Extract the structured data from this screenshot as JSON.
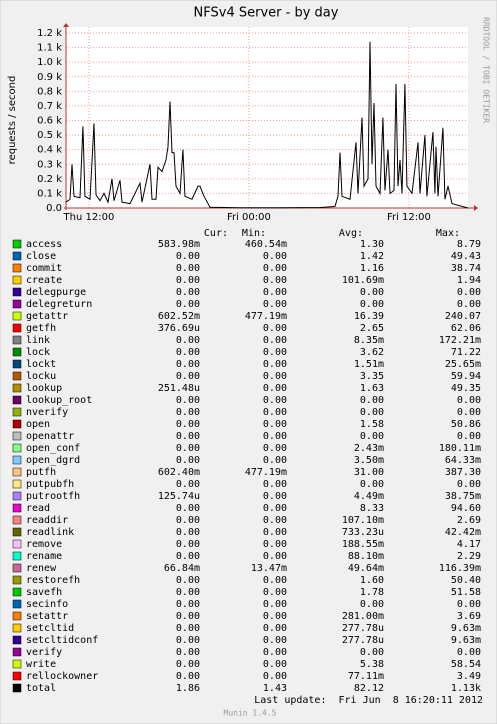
{
  "chart_data": {
    "type": "line",
    "title": "NFSv4 Server - by day",
    "y_label": "requests / second",
    "watermark": "RRDTOOL / TOBI OETIKER",
    "xlim": [
      10.28,
      40.43
    ],
    "ylim": [
      0,
      1200
    ],
    "xticks": [
      {
        "value": 12,
        "label": "Thu 12:00"
      },
      {
        "value": 24,
        "label": "Fri 00:00"
      },
      {
        "value": 36,
        "label": "Fri 12:00"
      }
    ],
    "yticks": [
      {
        "value": 0,
        "label": "0.0"
      },
      {
        "value": 100,
        "label": "0.1 k"
      },
      {
        "value": 200,
        "label": "0.2 k"
      },
      {
        "value": 300,
        "label": "0.3 k"
      },
      {
        "value": 400,
        "label": "0.4 k"
      },
      {
        "value": 500,
        "label": "0.5 k"
      },
      {
        "value": 600,
        "label": "0.6 k"
      },
      {
        "value": 700,
        "label": "0.7 k"
      },
      {
        "value": 800,
        "label": "0.8 k"
      },
      {
        "value": 900,
        "label": "0.9 k"
      },
      {
        "value": 1000,
        "label": "1.0 k"
      },
      {
        "value": 1100,
        "label": "1.1 k"
      },
      {
        "value": 1200,
        "label": "1.2 k"
      }
    ],
    "grid": true,
    "color": "#000000",
    "x": [
      10.28,
      10.58,
      10.73,
      10.88,
      11.33,
      11.55,
      11.7,
      12.08,
      12.38,
      12.53,
      12.83,
      13.13,
      13.43,
      13.73,
      13.88,
      14.33,
      14.48,
      15.08,
      15.83,
      15.98,
      16.58,
      16.73,
      17.03,
      17.18,
      17.48,
      17.78,
      17.93,
      18.08,
      18.23,
      18.38,
      18.53,
      18.83,
      19.05,
      19.2,
      19.73,
      20.18,
      20.33,
      20.63,
      21.08,
      23.33,
      26.33,
      29.33,
      30.45,
      30.68,
      30.83,
      30.98,
      31.58,
      32.03,
      32.18,
      32.48,
      32.63,
      32.93,
      33.08,
      33.23,
      33.38,
      33.53,
      33.83,
      34.05,
      34.2,
      34.43,
      34.58,
      34.88,
      35.03,
      35.18,
      35.33,
      35.48,
      35.7,
      35.85,
      36.23,
      36.68,
      36.83,
      37.2,
      37.35,
      37.8,
      37.95,
      38.03,
      38.18,
      38.55,
      38.7,
      38.93,
      39.23,
      40.43
    ],
    "values": [
      40,
      60,
      300,
      80,
      70,
      560,
      80,
      60,
      580,
      90,
      50,
      100,
      40,
      200,
      50,
      190,
      40,
      30,
      170,
      40,
      300,
      60,
      60,
      280,
      250,
      330,
      420,
      730,
      380,
      380,
      150,
      100,
      400,
      80,
      60,
      150,
      150,
      80,
      5,
      2,
      2,
      3,
      10,
      80,
      380,
      80,
      60,
      450,
      100,
      620,
      150,
      200,
      1140,
      300,
      720,
      150,
      100,
      620,
      120,
      400,
      100,
      120,
      850,
      150,
      330,
      100,
      850,
      150,
      100,
      450,
      100,
      500,
      80,
      520,
      100,
      420,
      80,
      550,
      60,
      150,
      30,
      0
    ]
  },
  "legend": {
    "columns": [
      "Cur:",
      "Min:",
      "Avg:",
      "Max:"
    ],
    "rows": [
      {
        "name": "access",
        "color": "#00cc00",
        "cells": [
          "583.98m",
          "460.54m",
          "1.30",
          "8.79"
        ]
      },
      {
        "name": "close",
        "color": "#0066b3",
        "cells": [
          "0.00",
          "0.00",
          "1.42",
          "49.43"
        ]
      },
      {
        "name": "commit",
        "color": "#ff8000",
        "cells": [
          "0.00",
          "0.00",
          "1.16",
          "38.74"
        ]
      },
      {
        "name": "create",
        "color": "#ffcc00",
        "cells": [
          "0.00",
          "0.00",
          "101.69m",
          "1.94"
        ]
      },
      {
        "name": "delegpurge",
        "color": "#330099",
        "cells": [
          "0.00",
          "0.00",
          "0.00",
          "0.00"
        ]
      },
      {
        "name": "delegreturn",
        "color": "#990099",
        "cells": [
          "0.00",
          "0.00",
          "0.00",
          "0.00"
        ]
      },
      {
        "name": "getattr",
        "color": "#ccff00",
        "cells": [
          "602.52m",
          "477.19m",
          "16.39",
          "240.07"
        ]
      },
      {
        "name": "getfh",
        "color": "#ff0000",
        "cells": [
          "376.69u",
          "0.00",
          "2.65",
          "62.06"
        ]
      },
      {
        "name": "link",
        "color": "#808080",
        "cells": [
          "0.00",
          "0.00",
          "8.35m",
          "172.21m"
        ]
      },
      {
        "name": "lock",
        "color": "#008f00",
        "cells": [
          "0.00",
          "0.00",
          "3.62",
          "71.22"
        ]
      },
      {
        "name": "lockt",
        "color": "#00487d",
        "cells": [
          "0.00",
          "0.00",
          "1.51m",
          "25.65m"
        ]
      },
      {
        "name": "locku",
        "color": "#b35a00",
        "cells": [
          "0.00",
          "0.00",
          "3.35",
          "59.94"
        ]
      },
      {
        "name": "lookup",
        "color": "#b38f00",
        "cells": [
          "251.48u",
          "0.00",
          "1.63",
          "49.35"
        ]
      },
      {
        "name": "lookup_root",
        "color": "#6b006b",
        "cells": [
          "0.00",
          "0.00",
          "0.00",
          "0.00"
        ]
      },
      {
        "name": "nverify",
        "color": "#8fb300",
        "cells": [
          "0.00",
          "0.00",
          "0.00",
          "0.00"
        ]
      },
      {
        "name": "open",
        "color": "#b30000",
        "cells": [
          "0.00",
          "0.00",
          "1.58",
          "50.86"
        ]
      },
      {
        "name": "openattr",
        "color": "#bebebe",
        "cells": [
          "0.00",
          "0.00",
          "0.00",
          "0.00"
        ]
      },
      {
        "name": "open_conf",
        "color": "#80ff80",
        "cells": [
          "0.00",
          "0.00",
          "2.43m",
          "180.11m"
        ]
      },
      {
        "name": "open_dgrd",
        "color": "#80c9ff",
        "cells": [
          "0.00",
          "0.00",
          "3.50m",
          "64.33m"
        ]
      },
      {
        "name": "putfh",
        "color": "#ffc080",
        "cells": [
          "602.40m",
          "477.19m",
          "31.00",
          "387.30"
        ]
      },
      {
        "name": "putpubfh",
        "color": "#ffe680",
        "cells": [
          "0.00",
          "0.00",
          "0.00",
          "0.00"
        ]
      },
      {
        "name": "putrootfh",
        "color": "#aa80ff",
        "cells": [
          "125.74u",
          "0.00",
          "4.49m",
          "38.75m"
        ]
      },
      {
        "name": "read",
        "color": "#ee00cc",
        "cells": [
          "0.00",
          "0.00",
          "8.33",
          "94.60"
        ]
      },
      {
        "name": "readdir",
        "color": "#ff8080",
        "cells": [
          "0.00",
          "0.00",
          "107.10m",
          "2.69"
        ]
      },
      {
        "name": "readlink",
        "color": "#666600",
        "cells": [
          "0.00",
          "0.00",
          "733.23u",
          "42.42m"
        ]
      },
      {
        "name": "remove",
        "color": "#ffbfff",
        "cells": [
          "0.00",
          "0.00",
          "188.55m",
          "4.17"
        ]
      },
      {
        "name": "rename",
        "color": "#00ffcc",
        "cells": [
          "0.00",
          "0.00",
          "88.10m",
          "2.29"
        ]
      },
      {
        "name": "renew",
        "color": "#cc6699",
        "cells": [
          "66.84m",
          "13.47m",
          "49.64m",
          "116.39m"
        ]
      },
      {
        "name": "restorefh",
        "color": "#999900",
        "cells": [
          "0.00",
          "0.00",
          "1.60",
          "50.40"
        ]
      },
      {
        "name": "savefh",
        "color": "#00cc00",
        "cells": [
          "0.00",
          "0.00",
          "1.78",
          "51.58"
        ]
      },
      {
        "name": "secinfo",
        "color": "#0066b3",
        "cells": [
          "0.00",
          "0.00",
          "0.00",
          "0.00"
        ]
      },
      {
        "name": "setattr",
        "color": "#ff8000",
        "cells": [
          "0.00",
          "0.00",
          "281.00m",
          "3.69"
        ]
      },
      {
        "name": "setcltid",
        "color": "#ffcc00",
        "cells": [
          "0.00",
          "0.00",
          "277.78u",
          "9.63m"
        ]
      },
      {
        "name": "setcltidconf",
        "color": "#330099",
        "cells": [
          "0.00",
          "0.00",
          "277.78u",
          "9.63m"
        ]
      },
      {
        "name": "verify",
        "color": "#990099",
        "cells": [
          "0.00",
          "0.00",
          "0.00",
          "0.00"
        ]
      },
      {
        "name": "write",
        "color": "#ccff00",
        "cells": [
          "0.00",
          "0.00",
          "5.38",
          "58.54"
        ]
      },
      {
        "name": "rellockowner",
        "color": "#ff0000",
        "cells": [
          "0.00",
          "0.00",
          "77.11m",
          "3.49"
        ]
      },
      {
        "name": "total",
        "color": "#000000",
        "cells": [
          "1.86",
          "1.43",
          "82.12",
          "1.13k"
        ]
      }
    ]
  },
  "footer": {
    "last_update": "Last update:  Fri Jun  8 16:20:11 2012",
    "version": "Munin 1.4.5"
  }
}
